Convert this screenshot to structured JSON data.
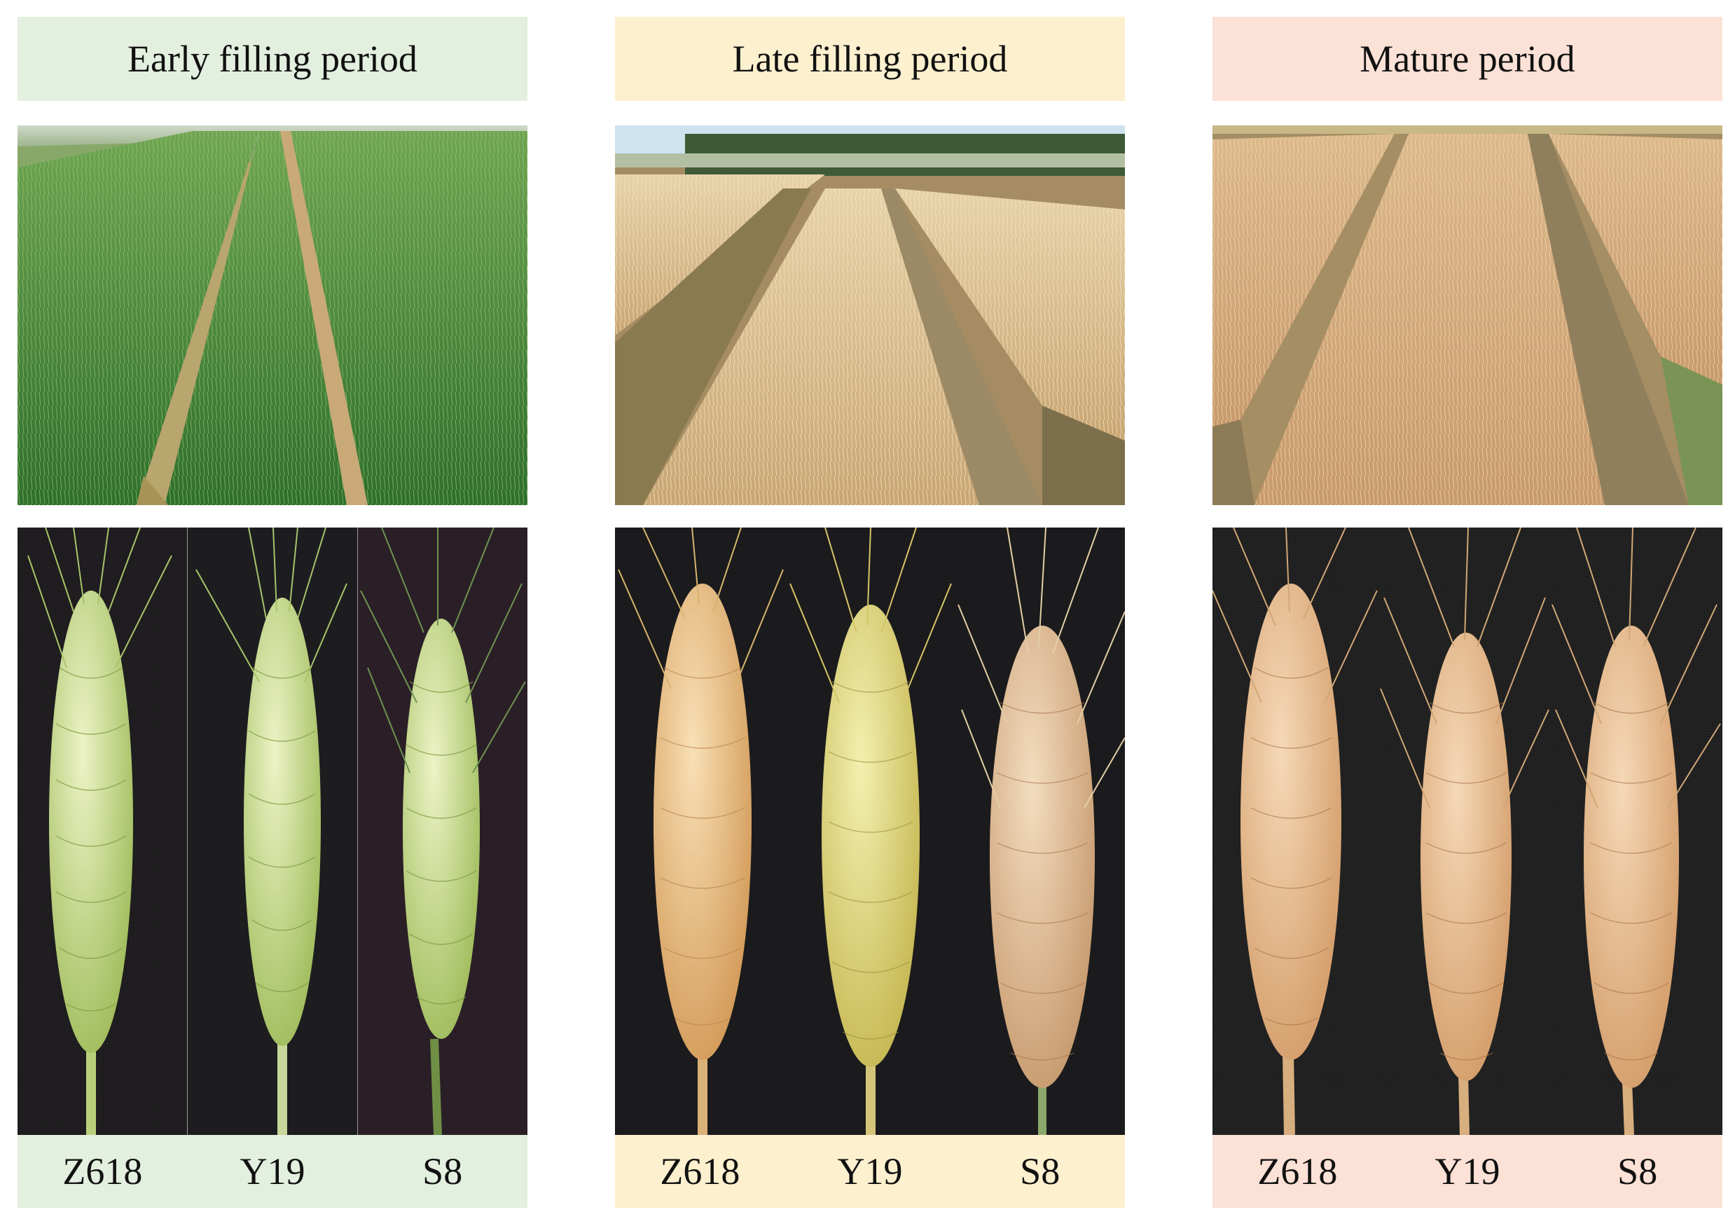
{
  "periods": [
    {
      "title": "Early filling period",
      "header_color": "#e3efdf",
      "stage_palette": "green",
      "cultivars": [
        "Z618",
        "Y19",
        "S8"
      ]
    },
    {
      "title": "Late filling period",
      "header_color": "#fdf0cf",
      "stage_palette": "golden",
      "cultivars": [
        "Z618",
        "Y19",
        "S8"
      ]
    },
    {
      "title": "Mature period",
      "header_color": "#fbe1d6",
      "stage_palette": "tan",
      "cultivars": [
        "Z618",
        "Y19",
        "S8"
      ]
    }
  ]
}
